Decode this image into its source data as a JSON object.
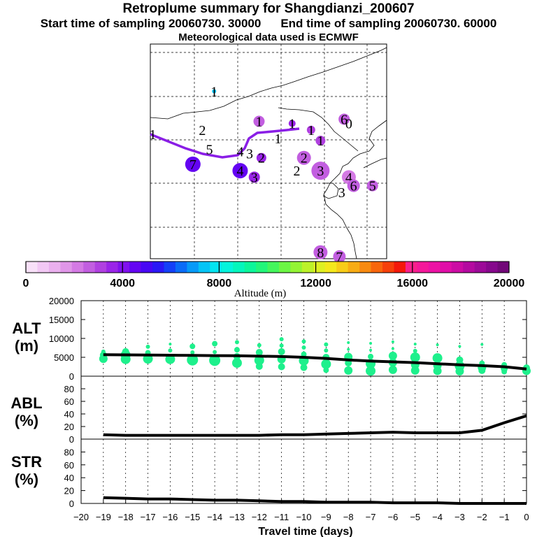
{
  "header": {
    "title": "Retroplume summary for Shangdianzi_200607",
    "start_label": "Start time of sampling 20060730. 30000",
    "end_label": "End time of sampling 20060730. 60000",
    "met_label": "Meteorological data used is ECMWF"
  },
  "map": {
    "trajectory_color": "#8a1ee6",
    "clusters": [
      {
        "label": "1",
        "lon": 0.27,
        "lat": 0.78,
        "alt": 7200,
        "size": 3
      },
      {
        "label": "1",
        "lon": 0.46,
        "lat": 0.64,
        "alt": 2600,
        "size": 8
      },
      {
        "label": "2",
        "lon": 0.22,
        "lat": 0.6,
        "alt": null,
        "size": 0
      },
      {
        "label": "5",
        "lon": 0.25,
        "lat": 0.51,
        "alt": null,
        "size": 0
      },
      {
        "label": "7",
        "lon": 0.18,
        "lat": 0.44,
        "alt": 4400,
        "size": 11
      },
      {
        "label": "4",
        "lon": 0.38,
        "lat": 0.5,
        "alt": null,
        "size": 0
      },
      {
        "label": "3",
        "lon": 0.42,
        "lat": 0.49,
        "alt": null,
        "size": 0
      },
      {
        "label": "2",
        "lon": 0.47,
        "lat": 0.47,
        "alt": 3800,
        "size": 7
      },
      {
        "label": "1",
        "lon": 0.54,
        "lat": 0.56,
        "alt": null,
        "size": 0
      },
      {
        "label": "1",
        "lon": 0.6,
        "lat": 0.63,
        "alt": 3400,
        "size": 5
      },
      {
        "label": "1",
        "lon": 0.68,
        "lat": 0.6,
        "alt": 3200,
        "size": 6
      },
      {
        "label": "1",
        "lon": 0.72,
        "lat": 0.55,
        "alt": 3000,
        "size": 7
      },
      {
        "label": "6",
        "lon": 0.82,
        "lat": 0.65,
        "alt": 2800,
        "size": 8
      },
      {
        "label": "0",
        "lon": 0.84,
        "lat": 0.63,
        "alt": null,
        "size": 0
      },
      {
        "label": "2",
        "lon": 0.65,
        "lat": 0.47,
        "alt": 2600,
        "size": 10
      },
      {
        "label": "2",
        "lon": 0.62,
        "lat": 0.41,
        "alt": null,
        "size": 0
      },
      {
        "label": "3",
        "lon": 0.72,
        "lat": 0.41,
        "alt": 2400,
        "size": 13
      },
      {
        "label": "4",
        "lon": 0.84,
        "lat": 0.38,
        "alt": 2200,
        "size": 10
      },
      {
        "label": "6",
        "lon": 0.86,
        "lat": 0.34,
        "alt": 2400,
        "size": 9
      },
      {
        "label": "5",
        "lon": 0.94,
        "lat": 0.34,
        "alt": 2600,
        "size": 8
      },
      {
        "label": "3",
        "lon": 0.81,
        "lat": 0.31,
        "alt": null,
        "size": 0
      },
      {
        "label": "4",
        "lon": 0.38,
        "lat": 0.41,
        "alt": 4600,
        "size": 11
      },
      {
        "label": "3",
        "lon": 0.44,
        "lat": 0.38,
        "alt": 3600,
        "size": 8
      },
      {
        "label": "8",
        "lon": 0.72,
        "lat": 0.03,
        "alt": 2800,
        "size": 10
      },
      {
        "label": "7",
        "lon": 0.8,
        "lat": 0.01,
        "alt": 2600,
        "size": 9
      },
      {
        "label": "1",
        "lon": 0.01,
        "lat": 0.58,
        "alt": null,
        "size": 0
      }
    ]
  },
  "colorbar": {
    "tick_labels": [
      "0",
      "4000",
      "8000",
      "12000",
      "16000",
      "20000"
    ],
    "label": "Altitude (m)",
    "colors": [
      "#f8e0f8",
      "#f2c8f4",
      "#eab0ee",
      "#e096e8",
      "#d47ae4",
      "#c25ee0",
      "#b040e0",
      "#9a24e8",
      "#8010ee",
      "#6404f2",
      "#4808f4",
      "#2a18f6",
      "#1440f8",
      "#0a6cf8",
      "#069af8",
      "#04c4f6",
      "#04e4f0",
      "#04f4dc",
      "#04f6bc",
      "#0cf69a",
      "#22f67a",
      "#44f65c",
      "#6cf644",
      "#94f434",
      "#bcf22a",
      "#def022",
      "#f4e81c",
      "#f8cc18",
      "#f8ac14",
      "#f88a10",
      "#f8660c",
      "#f6400a",
      "#f4180a",
      "#f8208c",
      "#f4189a",
      "#ec12a4",
      "#e00ea8",
      "#cc0ca4",
      "#b40aa0",
      "#9c0a98",
      "#86088c",
      "#720878"
    ],
    "min": 0,
    "max": 20000
  },
  "panels": {
    "alt": {
      "label_line1": "ALT",
      "label_line2": "(m)",
      "ylim": [
        0,
        20000
      ],
      "yticks": [
        "20000",
        "15000",
        "10000",
        "5000",
        "0"
      ]
    },
    "abl": {
      "label_line1": "ABL",
      "label_line2": "(%)",
      "ylim": [
        0,
        100
      ],
      "yticks": [
        "80",
        "60",
        "40",
        "20",
        "0"
      ]
    },
    "str": {
      "label_line1": "STR",
      "label_line2": "(%)",
      "ylim": [
        0,
        100
      ],
      "yticks": [
        "80",
        "60",
        "40",
        "20",
        "0"
      ]
    }
  },
  "xaxis": {
    "label": "Travel time (days)",
    "tick_labels": [
      "−20",
      "−19",
      "−18",
      "−17",
      "−16",
      "−15",
      "−14",
      "−13",
      "−12",
      "−11",
      "−10",
      "−9",
      "−8",
      "−7",
      "−6",
      "−5",
      "−4",
      "−3",
      "−2",
      "−1",
      "0"
    ],
    "xlim": [
      -20,
      0
    ]
  },
  "chart_data": {
    "type": "line",
    "title": "Retroplume summary for Shangdianzi_200607",
    "xlabel": "Travel time (days)",
    "x": [
      -19,
      -18,
      -17,
      -16,
      -15,
      -14,
      -13,
      -12,
      -11,
      -10,
      -9,
      -8,
      -7,
      -6,
      -5,
      -4,
      -3,
      -2,
      -1,
      0
    ],
    "series": [
      {
        "name": "ALT mean (m)",
        "values": [
          5700,
          5650,
          5600,
          5550,
          5500,
          5450,
          5400,
          5300,
          5200,
          5000,
          4700,
          4300,
          4000,
          3800,
          3600,
          3300,
          3000,
          2800,
          2500,
          1900
        ]
      },
      {
        "name": "ABL (%)",
        "values": [
          7,
          6,
          6,
          6,
          6,
          6,
          6,
          6,
          7,
          7,
          8,
          9,
          10,
          11,
          10,
          10,
          10,
          14,
          26,
          37
        ]
      },
      {
        "name": "STR (%)",
        "values": [
          9,
          8,
          7,
          7,
          6,
          5,
          5,
          4,
          3,
          3,
          2,
          2,
          2,
          1,
          1,
          1,
          0,
          0,
          0,
          0
        ]
      }
    ],
    "alt_clusters": [
      {
        "x": -19,
        "points": [
          [
            6500,
            3
          ],
          [
            5600,
            5
          ],
          [
            4600,
            6
          ]
        ]
      },
      {
        "x": -18,
        "points": [
          [
            6500,
            5
          ],
          [
            5600,
            7
          ],
          [
            4500,
            7
          ]
        ]
      },
      {
        "x": -17,
        "points": [
          [
            7800,
            3
          ],
          [
            6200,
            4
          ],
          [
            4600,
            7
          ]
        ]
      },
      {
        "x": -16,
        "points": [
          [
            8500,
            2
          ],
          [
            6800,
            3
          ],
          [
            4500,
            7
          ]
        ]
      },
      {
        "x": -15,
        "points": [
          [
            7900,
            4
          ],
          [
            6300,
            3
          ],
          [
            4300,
            8
          ]
        ]
      },
      {
        "x": -14,
        "points": [
          [
            8600,
            4
          ],
          [
            6400,
            3
          ],
          [
            4200,
            8
          ]
        ]
      },
      {
        "x": -13,
        "points": [
          [
            9000,
            3
          ],
          [
            7000,
            4
          ],
          [
            5200,
            5
          ],
          [
            3500,
            7
          ]
        ]
      },
      {
        "x": -12,
        "points": [
          [
            8200,
            3
          ],
          [
            6300,
            5
          ],
          [
            4200,
            7
          ],
          [
            2600,
            5
          ]
        ]
      },
      {
        "x": -11,
        "points": [
          [
            9800,
            3
          ],
          [
            8100,
            3
          ],
          [
            6500,
            5
          ],
          [
            4500,
            6
          ],
          [
            2500,
            5
          ]
        ]
      },
      {
        "x": -10,
        "points": [
          [
            9200,
            3
          ],
          [
            7600,
            3
          ],
          [
            5800,
            4
          ],
          [
            4100,
            7
          ],
          [
            2300,
            5
          ]
        ]
      },
      {
        "x": -9,
        "points": [
          [
            8400,
            3
          ],
          [
            6800,
            3
          ],
          [
            5000,
            5
          ],
          [
            3200,
            7
          ],
          [
            1600,
            4
          ]
        ]
      },
      {
        "x": -8,
        "points": [
          [
            8900,
            2
          ],
          [
            7100,
            2
          ],
          [
            5100,
            6
          ],
          [
            3500,
            5
          ],
          [
            1500,
            6
          ]
        ]
      },
      {
        "x": -7,
        "points": [
          [
            8700,
            2
          ],
          [
            6900,
            2
          ],
          [
            5200,
            4
          ],
          [
            3300,
            7
          ],
          [
            1400,
            7
          ]
        ]
      },
      {
        "x": -6,
        "points": [
          [
            9100,
            2
          ],
          [
            7300,
            2
          ],
          [
            5400,
            6
          ],
          [
            3600,
            6
          ],
          [
            1700,
            6
          ]
        ]
      },
      {
        "x": -5,
        "points": [
          [
            8500,
            2
          ],
          [
            6700,
            3
          ],
          [
            5000,
            7
          ],
          [
            3000,
            6
          ],
          [
            1500,
            6
          ]
        ]
      },
      {
        "x": -4,
        "points": [
          [
            8300,
            2
          ],
          [
            4800,
            7
          ],
          [
            2800,
            6
          ],
          [
            1400,
            6
          ]
        ]
      },
      {
        "x": -3,
        "points": [
          [
            7900,
            2
          ],
          [
            4300,
            5
          ],
          [
            2700,
            7
          ],
          [
            1300,
            6
          ]
        ]
      },
      {
        "x": -2,
        "points": [
          [
            8400,
            2
          ],
          [
            3400,
            4
          ],
          [
            2300,
            6
          ],
          [
            1500,
            5
          ]
        ]
      },
      {
        "x": -1,
        "points": [
          [
            3000,
            4
          ],
          [
            2000,
            5
          ],
          [
            1200,
            4
          ]
        ]
      },
      {
        "x": 0,
        "points": [
          [
            2200,
            5
          ],
          [
            1400,
            6
          ]
        ]
      }
    ]
  }
}
